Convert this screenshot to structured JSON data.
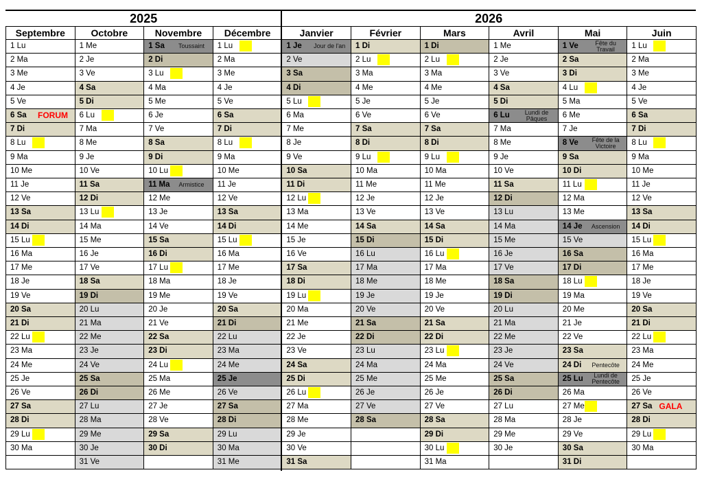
{
  "years": [
    {
      "label": "2025",
      "months": [
        {
          "name": "Septembre",
          "days": [
            "1 Lu",
            "2 Ma",
            "3 Me",
            "4 Je",
            "5 Ve",
            "6 Sa",
            "7 Di",
            "8 Lu",
            "9 Ma",
            "10 Me",
            "11 Je",
            "12 Ve",
            "13 Sa",
            "14 Di",
            "15 Lu",
            "16 Ma",
            "17 Me",
            "18 Je",
            "19 Ve",
            "20 Sa",
            "21 Di",
            "22 Lu",
            "23 Ma",
            "24 Me",
            "25 Je",
            "26 Ve",
            "27 Sa",
            "28 Di",
            "29 Lu",
            "30 Ma"
          ],
          "styles": "nnnnnwwynnnnwwynnnnwwynnnnwwyn",
          "notes": [
            {
              "day": 6,
              "text": "FORUM",
              "kind": "event"
            }
          ]
        },
        {
          "name": "Octobre",
          "days": [
            "1 Me",
            "2 Je",
            "3 Ve",
            "4 Sa",
            "5 Di",
            "6 Lu",
            "7 Ma",
            "8 Me",
            "9 Je",
            "10 Ve",
            "11 Sa",
            "12 Di",
            "13 Lu",
            "14 Ma",
            "15 Me",
            "16 Je",
            "17 Ve",
            "18 Sa",
            "19 Di",
            "20 Lu",
            "21 Ma",
            "22 Me",
            "23 Je",
            "24 Ve",
            "25 Sa",
            "26 Di",
            "27 Lu",
            "28 Ma",
            "29 Me",
            "30 Je",
            "31 Ve"
          ],
          "styles": "nnnwwynnnnwwynnnnwxvvvvvxxvvvvv",
          "notes": []
        },
        {
          "name": "Novembre",
          "days": [
            "1 Sa",
            "2 Di",
            "3 Lu",
            "4 Ma",
            "5 Me",
            "6 Je",
            "7 Ve",
            "8 Sa",
            "9 Di",
            "10 Lu",
            "11 Ma",
            "12 Me",
            "13 Je",
            "14 Ve",
            "15 Sa",
            "16 Di",
            "17 Lu",
            "18 Ma",
            "19 Me",
            "20 Je",
            "21 Ve",
            "22 Sa",
            "23 Di",
            "24 Lu",
            "25 Ma",
            "26 Me",
            "27 Je",
            "28 Ve",
            "29 Sa",
            "30 Di"
          ],
          "styles": "hxynnnnwwyhnnnwwynnnnwwynnnnww",
          "notes": [
            {
              "day": 1,
              "text": "Toussaint",
              "kind": "holiday"
            },
            {
              "day": 11,
              "text": "Armistice",
              "kind": "holiday"
            }
          ]
        },
        {
          "name": "Décembre",
          "days": [
            "1 Lu",
            "2 Ma",
            "3 Me",
            "4 Je",
            "5 Ve",
            "6 Sa",
            "7 Di",
            "8 Lu",
            "9 Ma",
            "10 Me",
            "11 Je",
            "12 Ve",
            "13 Sa",
            "14 Di",
            "15 Lu",
            "16 Ma",
            "17 Me",
            "18 Je",
            "19 Ve",
            "20 Sa",
            "21 Di",
            "22 Lu",
            "23 Ma",
            "24 Me",
            "25 Je",
            "26 Ve",
            "27 Sa",
            "28 Di",
            "29 Lu",
            "30 Ma",
            "31 Me"
          ],
          "styles": "ynnnnwwynnnnwwynnnnwxvvvhvxxvvv",
          "notes": []
        }
      ]
    },
    {
      "label": "2026",
      "months": [
        {
          "name": "Janvier",
          "days": [
            "1 Je",
            "2 Ve",
            "3 Sa",
            "4 Di",
            "5 Lu",
            "6 Ma",
            "7 Me",
            "8 Je",
            "9 Ve",
            "10 Sa",
            "11 Di",
            "12 Lu",
            "13 Ma",
            "14 Me",
            "15 Je",
            "16 Ve",
            "17 Sa",
            "18 Di",
            "19 Lu",
            "20 Ma",
            "21 Me",
            "22 Je",
            "23 Ve",
            "24 Sa",
            "25 Di",
            "26 Lu",
            "27 Ma",
            "28 Me",
            "29 Je",
            "30 Ve",
            "31 Sa"
          ],
          "styles": "hvxxynnnnwwynnnnwwynnnnwwynnnnw",
          "notes": [
            {
              "day": 1,
              "text": "Jour de l'an",
              "kind": "holiday"
            }
          ]
        },
        {
          "name": "Février",
          "days": [
            "1 Di",
            "2 Lu",
            "3 Ma",
            "4 Me",
            "5 Je",
            "6 Ve",
            "7 Sa",
            "8 Di",
            "9 Lu",
            "10 Ma",
            "11 Me",
            "12 Je",
            "13 Ve",
            "14 Sa",
            "15 Di",
            "16 Lu",
            "17 Ma",
            "18 Me",
            "19 Je",
            "20 Ve",
            "21 Sa",
            "22 Di",
            "23 Lu",
            "24 Ma",
            "25 Me",
            "26 Je",
            "27 Ve",
            "28 Sa"
          ],
          "styles": "wynnnnwwynnnnwxvvvvvxxvvvvvx",
          "notes": []
        },
        {
          "name": "Mars",
          "days": [
            "1 Di",
            "2 Lu",
            "3 Ma",
            "4 Me",
            "5 Je",
            "6 Ve",
            "7 Sa",
            "8 Di",
            "9 Lu",
            "10 Ma",
            "11 Me",
            "12 Je",
            "13 Ve",
            "14 Sa",
            "15 Di",
            "16 Lu",
            "17 Ma",
            "18 Me",
            "19 Je",
            "20 Ve",
            "21 Sa",
            "22 Di",
            "23 Lu",
            "24 Ma",
            "25 Me",
            "26 Je",
            "27 Ve",
            "28 Sa",
            "29 Di",
            "30 Lu",
            "31 Ma"
          ],
          "styles": "xynnnnwwynnnnwwynnnnwwynnnnwwyn",
          "notes": []
        },
        {
          "name": "Avril",
          "days": [
            "1 Me",
            "2 Je",
            "3 Ve",
            "4 Sa",
            "5 Di",
            "6 Lu",
            "7 Ma",
            "8 Me",
            "9 Je",
            "10 Ve",
            "11 Sa",
            "12 Di",
            "13 Lu",
            "14 Ma",
            "15 Me",
            "16 Je",
            "17 Ve",
            "18 Sa",
            "19 Di",
            "20 Lu",
            "21 Ma",
            "22 Me",
            "23 Je",
            "24 Ve",
            "25 Sa",
            "26 Di",
            "27 Lu",
            "28 Ma",
            "29 Me",
            "30 Je"
          ],
          "styles": "nnnwwhnnnnwxvvvvvxxvvvvvxxnnnn",
          "notes": [
            {
              "day": 6,
              "text": "Lundi de Pâques",
              "kind": "holiday"
            }
          ]
        },
        {
          "name": "Mai",
          "days": [
            "1 Ve",
            "2 Sa",
            "3 Di",
            "4 Lu",
            "5 Ma",
            "6 Me",
            "7 Je",
            "8 Ve",
            "9 Sa",
            "10 Di",
            "11 Lu",
            "12 Ma",
            "13 Me",
            "14 Je",
            "15 Ve",
            "16 Sa",
            "17 Di",
            "18 Lu",
            "19 Ma",
            "20 Me",
            "21 Je",
            "22 Ve",
            "23 Sa",
            "24 Di",
            "25 Lu",
            "26 Ma",
            "27 Me",
            "28 Je",
            "29 Ve",
            "30 Sa",
            "31 Di"
          ],
          "styles": "hwwynnnhwwynnhvxxynnnnwwhnynnww",
          "notes": [
            {
              "day": 1,
              "text": "Fête du Travail",
              "kind": "holiday"
            },
            {
              "day": 8,
              "text": "Fête de la Victoire",
              "kind": "holiday"
            },
            {
              "day": 14,
              "text": "Ascension",
              "kind": "holiday"
            },
            {
              "day": 24,
              "text": "Pentecôte",
              "kind": "holiday"
            },
            {
              "day": 25,
              "text": "Lundi de Pentecôte",
              "kind": "holiday"
            }
          ]
        },
        {
          "name": "Juin",
          "days": [
            "1 Lu",
            "2 Ma",
            "3 Me",
            "4 Je",
            "5 Ve",
            "6 Sa",
            "7 Di",
            "8 Lu",
            "9 Ma",
            "10 Me",
            "11 Je",
            "12 Ve",
            "13 Sa",
            "14 Di",
            "15 Lu",
            "16 Ma",
            "17 Me",
            "18 Je",
            "19 Ve",
            "20 Sa",
            "21 Di",
            "22 Lu",
            "23 Ma",
            "24 Me",
            "25 Je",
            "26 Ve",
            "27 Sa",
            "28 Di",
            "29 Lu",
            "30 Ma"
          ],
          "styles": "ynnnnwwynnnnwwynnnnwwynnnnwwyn",
          "notes": [
            {
              "day": 27,
              "text": "GALA",
              "kind": "event"
            }
          ]
        }
      ]
    }
  ]
}
